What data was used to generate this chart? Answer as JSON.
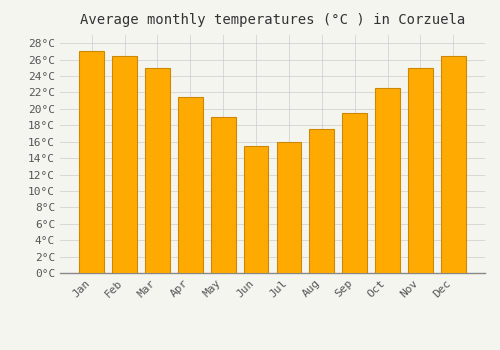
{
  "title": "Average monthly temperatures (°C ) in Corzuela",
  "months": [
    "Jan",
    "Feb",
    "Mar",
    "Apr",
    "May",
    "Jun",
    "Jul",
    "Aug",
    "Sep",
    "Oct",
    "Nov",
    "Dec"
  ],
  "values": [
    27.0,
    26.5,
    25.0,
    21.5,
    19.0,
    15.5,
    16.0,
    17.5,
    19.5,
    22.5,
    25.0,
    26.5
  ],
  "bar_color": "#FFAA00",
  "bar_edge_color": "#CC8800",
  "ylim": [
    0,
    29
  ],
  "ytick_max": 28,
  "ytick_step": 2,
  "background_color": "#f5f5f0",
  "plot_bg_color": "#f5f5f0",
  "grid_color": "#cccccc",
  "title_fontsize": 10,
  "tick_fontsize": 8,
  "font_family": "monospace",
  "tick_color": "#555555",
  "title_color": "#333333"
}
